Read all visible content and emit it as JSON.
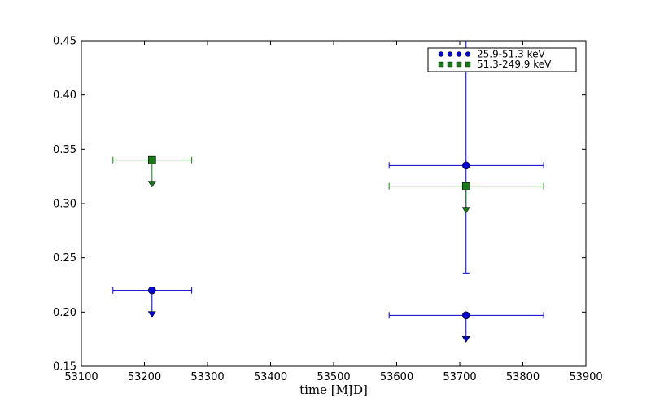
{
  "chart_data": {
    "type": "scatter",
    "title": "",
    "xlabel": "time [MJD]",
    "ylabel": "",
    "xlim": [
      53100,
      53900
    ],
    "ylim": [
      0.15,
      0.45
    ],
    "x_ticks": [
      "53100",
      "53200",
      "53300",
      "53400",
      "53500",
      "53600",
      "53700",
      "53800",
      "53900"
    ],
    "y_ticks": [
      "0.15",
      "0.20",
      "0.25",
      "0.30",
      "0.35",
      "0.40",
      "0.45"
    ],
    "grid": false,
    "legend_placement": "top-right",
    "series": [
      {
        "name": "25.9-51.3 keV",
        "color": "#0000cc",
        "marker": "circle",
        "points": [
          {
            "x": 53212,
            "x_low": 53150,
            "x_high": 53275,
            "y": 0.22,
            "y_low": null,
            "y_high": null,
            "upper_limit": true
          },
          {
            "x": 53710,
            "x_low": 53588,
            "x_high": 53833,
            "y": 0.335,
            "y_low": 0.236,
            "y_high": 0.45,
            "upper_limit": false
          },
          {
            "x": 53710,
            "x_low": 53588,
            "x_high": 53833,
            "y": 0.197,
            "y_low": null,
            "y_high": null,
            "upper_limit": true
          }
        ]
      },
      {
        "name": "51.3-249.9 keV",
        "color": "#1a7a1a",
        "marker": "square",
        "points": [
          {
            "x": 53212,
            "x_low": 53150,
            "x_high": 53275,
            "y": 0.34,
            "y_low": null,
            "y_high": null,
            "upper_limit": true
          },
          {
            "x": 53710,
            "x_low": 53588,
            "x_high": 53833,
            "y": 0.316,
            "y_low": null,
            "y_high": null,
            "upper_limit": true
          }
        ]
      }
    ]
  }
}
